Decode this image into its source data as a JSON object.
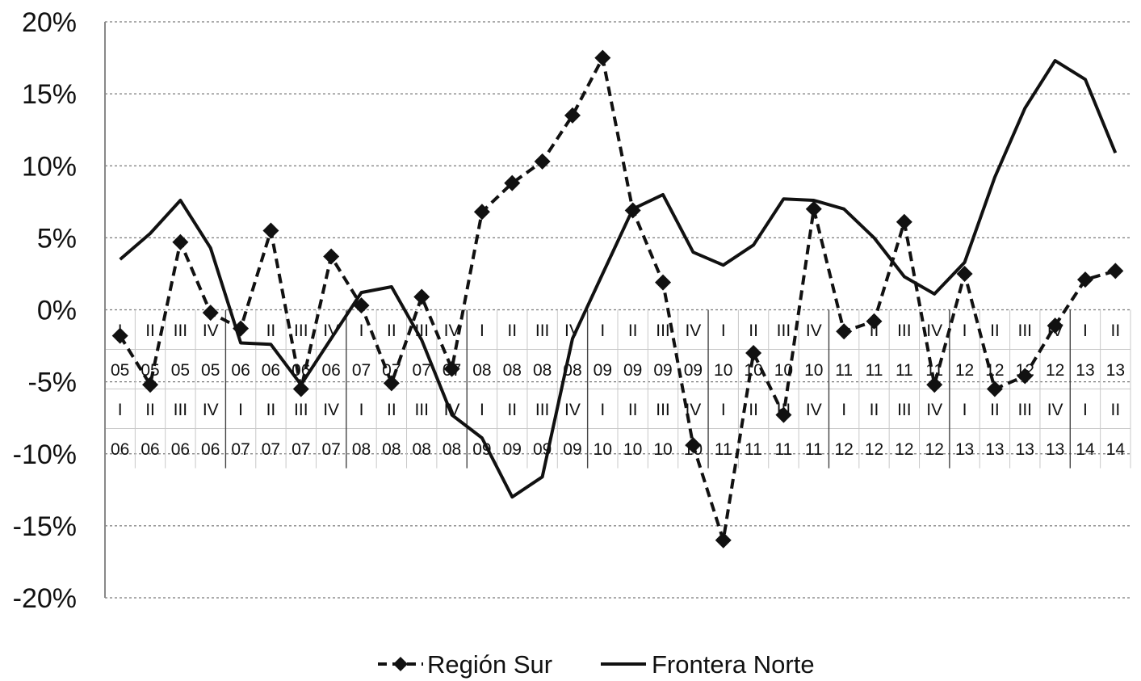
{
  "chart_data": {
    "type": "line",
    "ylim": [
      -0.2,
      0.2
    ],
    "ytick_values": [
      0.2,
      0.15,
      0.1,
      0.05,
      0.0,
      -0.05,
      -0.1,
      -0.15,
      -0.2
    ],
    "ytick_labels": [
      "20%",
      "15%",
      "10%",
      "5%",
      "0%",
      "-5%",
      "-10%",
      "-15%",
      "-20%"
    ],
    "grid": "horizontal-dashed",
    "legend_position": "bottom",
    "category_rows": [
      [
        "I",
        "II",
        "III",
        "IV",
        "I",
        "II",
        "III",
        "IV",
        "I",
        "II",
        "III",
        "IV",
        "I",
        "II",
        "III",
        "IV",
        "I",
        "II",
        "III",
        "IV",
        "I",
        "II",
        "III",
        "IV",
        "I",
        "II",
        "III",
        "IV",
        "I",
        "II",
        "III",
        "IV",
        "I",
        "II"
      ],
      [
        "05",
        "05",
        "05",
        "05",
        "06",
        "06",
        "06",
        "06",
        "07",
        "07",
        "07",
        "07",
        "08",
        "08",
        "08",
        "08",
        "09",
        "09",
        "09",
        "09",
        "10",
        "10",
        "10",
        "10",
        "11",
        "11",
        "11",
        "11",
        "12",
        "12",
        "12",
        "12",
        "13",
        "13"
      ],
      [
        "I",
        "II",
        "III",
        "IV",
        "I",
        "II",
        "III",
        "IV",
        "I",
        "II",
        "III",
        "IV",
        "I",
        "II",
        "III",
        "IV",
        "I",
        "II",
        "III",
        "IV",
        "I",
        "II",
        "III",
        "IV",
        "I",
        "II",
        "III",
        "IV",
        "I",
        "II",
        "III",
        "IV",
        "I",
        "II"
      ],
      [
        "06",
        "06",
        "06",
        "06",
        "07",
        "07",
        "07",
        "07",
        "08",
        "08",
        "08",
        "08",
        "09",
        "09",
        "09",
        "09",
        "10",
        "10",
        "10",
        "10",
        "11",
        "11",
        "11",
        "11",
        "12",
        "12",
        "12",
        "12",
        "13",
        "13",
        "13",
        "13",
        "14",
        "14"
      ]
    ],
    "series": [
      {
        "name": "Región Sur",
        "style": "dashed-diamond",
        "color": "#111111",
        "values": [
          -0.018,
          -0.052,
          0.047,
          -0.002,
          -0.013,
          0.055,
          -0.055,
          0.037,
          0.003,
          -0.051,
          0.009,
          -0.041,
          0.068,
          0.088,
          0.103,
          0.135,
          0.175,
          0.069,
          0.019,
          -0.094,
          -0.16,
          -0.03,
          -0.073,
          0.07,
          -0.015,
          -0.008,
          0.061,
          -0.052,
          0.025,
          -0.055,
          -0.046,
          -0.011,
          0.021,
          0.027
        ]
      },
      {
        "name": "Frontera Norte",
        "style": "solid",
        "color": "#111111",
        "values": [
          0.035,
          0.053,
          0.076,
          0.043,
          -0.023,
          -0.024,
          -0.052,
          -0.02,
          0.012,
          0.016,
          -0.021,
          -0.073,
          -0.089,
          -0.13,
          -0.116,
          -0.02,
          0.025,
          0.07,
          0.08,
          0.04,
          0.031,
          0.045,
          0.077,
          0.076,
          0.07,
          0.05,
          0.023,
          0.011,
          0.033,
          0.092,
          0.14,
          0.173,
          0.16,
          0.109
        ]
      }
    ]
  }
}
